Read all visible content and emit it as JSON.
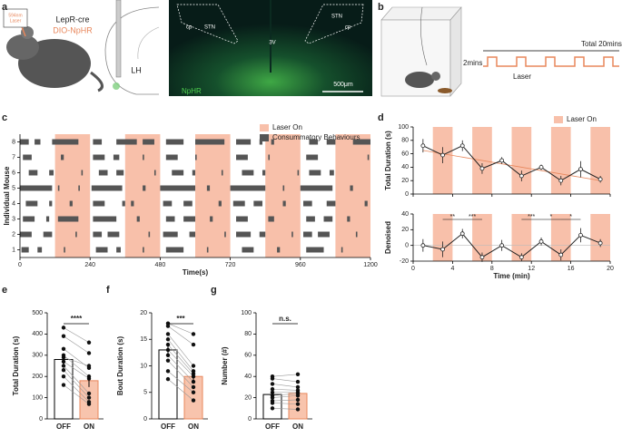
{
  "panel_labels": [
    "a",
    "b",
    "c",
    "d",
    "e",
    "f",
    "g"
  ],
  "panel_a": {
    "laser_top": "594nm",
    "laser_bottom": "Laser",
    "line": "LepR-cre",
    "virus": "DIO-NpHR",
    "region": "LH",
    "image_labels": [
      "cp",
      "STN",
      "3V",
      "STN",
      "cp"
    ],
    "stain": "NpHR",
    "scale_bar": "500μm"
  },
  "panel_b": {
    "total": "Total 20mins",
    "interval": "2mins",
    "laser": "Laser"
  },
  "chart_data": [
    {
      "type": "raster",
      "xlabel": "Time(s)",
      "ylabel": "Individual Mouse",
      "legend": [
        "Laser On",
        "Consummatory Behaviours"
      ],
      "laser_color": "#f8c0aa",
      "color": "#555555",
      "xlim": [
        0,
        1200
      ],
      "xticks": [
        0,
        240,
        480,
        720,
        960,
        1200
      ],
      "ylim": [
        0.5,
        8.5
      ],
      "yticks": [
        1,
        2,
        3,
        4,
        5,
        6,
        7,
        8
      ],
      "laser": [
        [
          120,
          240
        ],
        [
          360,
          480
        ],
        [
          600,
          720
        ],
        [
          840,
          960
        ],
        [
          1080,
          1200
        ]
      ],
      "rows": [
        [
          [
            5,
            30
          ],
          [
            60,
            75
          ],
          [
            150,
            155
          ],
          [
            260,
            300
          ],
          [
            330,
            345
          ],
          [
            420,
            425
          ],
          [
            500,
            560
          ],
          [
            640,
            645
          ],
          [
            760,
            800
          ],
          [
            880,
            890
          ],
          [
            980,
            1040
          ],
          [
            1100,
            1105
          ]
        ],
        [
          [
            0,
            40
          ],
          [
            80,
            110
          ],
          [
            190,
            195
          ],
          [
            250,
            280
          ],
          [
            300,
            340
          ],
          [
            440,
            445
          ],
          [
            490,
            540
          ],
          [
            580,
            600
          ],
          [
            700,
            705
          ],
          [
            740,
            790
          ],
          [
            820,
            840
          ],
          [
            930,
            935
          ],
          [
            970,
            1000
          ],
          [
            1020,
            1060
          ],
          [
            1150,
            1155
          ]
        ],
        [
          [
            10,
            50
          ],
          [
            90,
            100
          ],
          [
            130,
            200
          ],
          [
            250,
            330
          ],
          [
            400,
            410
          ],
          [
            500,
            530
          ],
          [
            560,
            600
          ],
          [
            650,
            660
          ],
          [
            740,
            780
          ],
          [
            850,
            870
          ],
          [
            980,
            1010
          ],
          [
            1040,
            1070
          ],
          [
            1120,
            1130
          ]
        ],
        [
          [
            20,
            60
          ],
          [
            100,
            110
          ],
          [
            170,
            180
          ],
          [
            250,
            290
          ],
          [
            350,
            360
          ],
          [
            380,
            390
          ],
          [
            490,
            520
          ],
          [
            560,
            590
          ],
          [
            680,
            690
          ],
          [
            730,
            770
          ],
          [
            800,
            830
          ],
          [
            900,
            910
          ],
          [
            970,
            1000
          ],
          [
            1050,
            1080
          ],
          [
            1180,
            1190
          ]
        ],
        [
          [
            0,
            110
          ],
          [
            130,
            135
          ],
          [
            200,
            205
          ],
          [
            245,
            350
          ],
          [
            420,
            430
          ],
          [
            480,
            600
          ],
          [
            640,
            650
          ],
          [
            720,
            840
          ],
          [
            900,
            905
          ],
          [
            960,
            1070
          ],
          [
            1130,
            1140
          ]
        ],
        [
          [
            30,
            60
          ],
          [
            100,
            115
          ],
          [
            210,
            215
          ],
          [
            270,
            300
          ],
          [
            330,
            355
          ],
          [
            460,
            465
          ],
          [
            520,
            560
          ],
          [
            590,
            600
          ],
          [
            690,
            695
          ],
          [
            760,
            800
          ],
          [
            830,
            840
          ],
          [
            950,
            955
          ],
          [
            990,
            1030
          ],
          [
            1060,
            1075
          ]
        ],
        [
          [
            10,
            40
          ],
          [
            140,
            150
          ],
          [
            250,
            290
          ],
          [
            320,
            340
          ],
          [
            420,
            425
          ],
          [
            500,
            540
          ],
          [
            600,
            605
          ],
          [
            740,
            780
          ],
          [
            850,
            855
          ],
          [
            980,
            1020
          ],
          [
            1190,
            1195
          ]
        ],
        [
          [
            0,
            30
          ],
          [
            50,
            70
          ],
          [
            110,
            200
          ],
          [
            250,
            280
          ],
          [
            330,
            400
          ],
          [
            420,
            460
          ],
          [
            500,
            560
          ],
          [
            600,
            700
          ],
          [
            740,
            790
          ],
          [
            820,
            830
          ],
          [
            860,
            870
          ],
          [
            990,
            1020
          ],
          [
            1050,
            1080
          ],
          [
            1140,
            1200
          ]
        ]
      ]
    },
    {
      "type": "line",
      "ylabel": "Total Duration (s)",
      "legend": "Laser On",
      "laser_color": "#f8c0aa",
      "color": "#222222",
      "xlim": [
        0,
        20
      ],
      "xticks": [
        0,
        4,
        8,
        12,
        16,
        20
      ],
      "ylim": [
        0,
        100
      ],
      "yticks": [
        0,
        20,
        40,
        60,
        80,
        100
      ],
      "laser": [
        [
          2,
          4
        ],
        [
          6,
          8
        ],
        [
          10,
          12
        ],
        [
          14,
          16
        ],
        [
          18,
          20
        ]
      ],
      "x": [
        1,
        3,
        5,
        7,
        9,
        11,
        13,
        15,
        17,
        19
      ],
      "values": [
        72,
        58,
        72,
        38,
        50,
        27,
        40,
        20,
        37,
        22
      ],
      "errors": [
        10,
        12,
        8,
        8,
        5,
        8,
        4,
        7,
        12,
        5
      ],
      "trend": {
        "color": "#e8875c",
        "x": [
          1,
          19
        ],
        "values": [
          65,
          20
        ]
      }
    },
    {
      "type": "line",
      "ylabel": "Denoised",
      "xlabel": "Time (min)",
      "laser_color": "#f8c0aa",
      "color": "#222222",
      "xlim": [
        0,
        20
      ],
      "xticks": [
        0,
        4,
        8,
        12,
        16,
        20
      ],
      "ylim": [
        -20,
        40
      ],
      "yticks": [
        -20,
        0,
        20,
        40
      ],
      "laser": [
        [
          2,
          4
        ],
        [
          6,
          8
        ],
        [
          10,
          12
        ],
        [
          14,
          16
        ],
        [
          18,
          20
        ]
      ],
      "x": [
        1,
        3,
        5,
        7,
        9,
        11,
        13,
        15,
        17,
        19
      ],
      "values": [
        0,
        -5,
        15,
        -15,
        0,
        -15,
        5,
        -12,
        13,
        3
      ],
      "errors": [
        8,
        10,
        6,
        6,
        7,
        5,
        5,
        7,
        9,
        5
      ],
      "significance": [
        {
          "x": [
            3,
            5
          ],
          "label": "**"
        },
        {
          "x": [
            5,
            7
          ],
          "label": "***"
        },
        {
          "x": [
            11,
            13
          ],
          "label": "***"
        },
        {
          "x": [
            13,
            15
          ],
          "label": "*"
        },
        {
          "x": [
            15,
            17
          ],
          "label": "*"
        }
      ]
    },
    {
      "type": "paired-bar",
      "ylabel": "Total Duration (s)",
      "categories": [
        "OFF",
        "ON"
      ],
      "colors": [
        "#ffffff",
        "#f8c4ad"
      ],
      "edge_colors": [
        "#000000",
        "#e8875c"
      ],
      "ylim": [
        0,
        500
      ],
      "yticks": [
        0,
        100,
        200,
        300,
        400,
        500
      ],
      "values": [
        280,
        180
      ],
      "errors": [
        28,
        30
      ],
      "significance": "****",
      "points": [
        [
          430,
          390,
          330,
          300,
          290,
          270,
          250,
          230,
          200,
          160
        ],
        [
          360,
          310,
          240,
          200,
          250,
          190,
          120,
          100,
          80,
          70
        ]
      ]
    },
    {
      "type": "paired-bar",
      "ylabel": "Bout Duration (s)",
      "categories": [
        "OFF",
        "ON"
      ],
      "colors": [
        "#ffffff",
        "#f8c4ad"
      ],
      "edge_colors": [
        "#000000",
        "#e8875c"
      ],
      "ylim": [
        0,
        20
      ],
      "yticks": [
        0,
        5,
        10,
        15,
        20
      ],
      "values": [
        13,
        8
      ],
      "errors": [
        1.2,
        1.2
      ],
      "significance": "***",
      "points": [
        [
          18,
          17.5,
          16,
          15,
          14,
          13,
          12,
          11,
          9,
          7.5
        ],
        [
          16,
          14,
          10,
          9,
          8.5,
          8,
          7,
          6,
          5,
          3.5
        ]
      ]
    },
    {
      "type": "paired-bar",
      "ylabel": "Number (#)",
      "categories": [
        "OFF",
        "ON"
      ],
      "colors": [
        "#ffffff",
        "#f8c4ad"
      ],
      "edge_colors": [
        "#000000",
        "#e8875c"
      ],
      "ylim": [
        0,
        100
      ],
      "yticks": [
        0,
        20,
        40,
        60,
        80,
        100
      ],
      "values": [
        23,
        24
      ],
      "errors": [
        3,
        3
      ],
      "significance": "n.s.",
      "points": [
        [
          40,
          38,
          33,
          28,
          25,
          22,
          20,
          17,
          15,
          10
        ],
        [
          42,
          35,
          30,
          27,
          25,
          24,
          22,
          18,
          14,
          9
        ]
      ]
    }
  ]
}
